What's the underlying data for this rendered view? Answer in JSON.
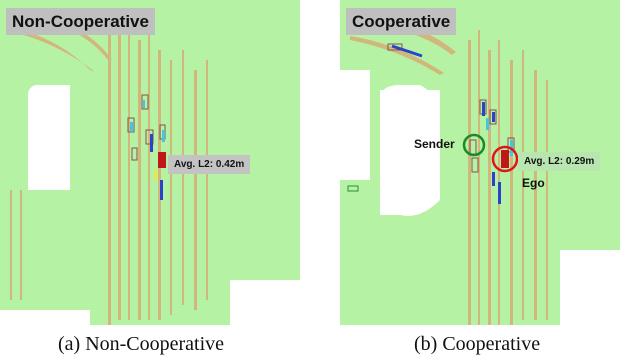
{
  "panels": {
    "non_cooperative": {
      "title": "Non-Cooperative",
      "metric": "Avg. L2: 0.42m",
      "caption": "(a) Non-Cooperative"
    },
    "cooperative": {
      "title": "Cooperative",
      "metric": "Avg. L2: 0.29m",
      "sender_label": "Sender",
      "ego_label": "Ego",
      "caption": "(b) Cooperative"
    }
  },
  "colors": {
    "map_green": "#b6f2a4",
    "lane_tan": "#d2b77c",
    "ego_vehicle": "#c01818",
    "sender_circle": "#1a8a2a",
    "ego_circle": "#e0141c",
    "trajectory_blue": "#2a43c8",
    "trajectory_cyan": "#40c8e0"
  }
}
